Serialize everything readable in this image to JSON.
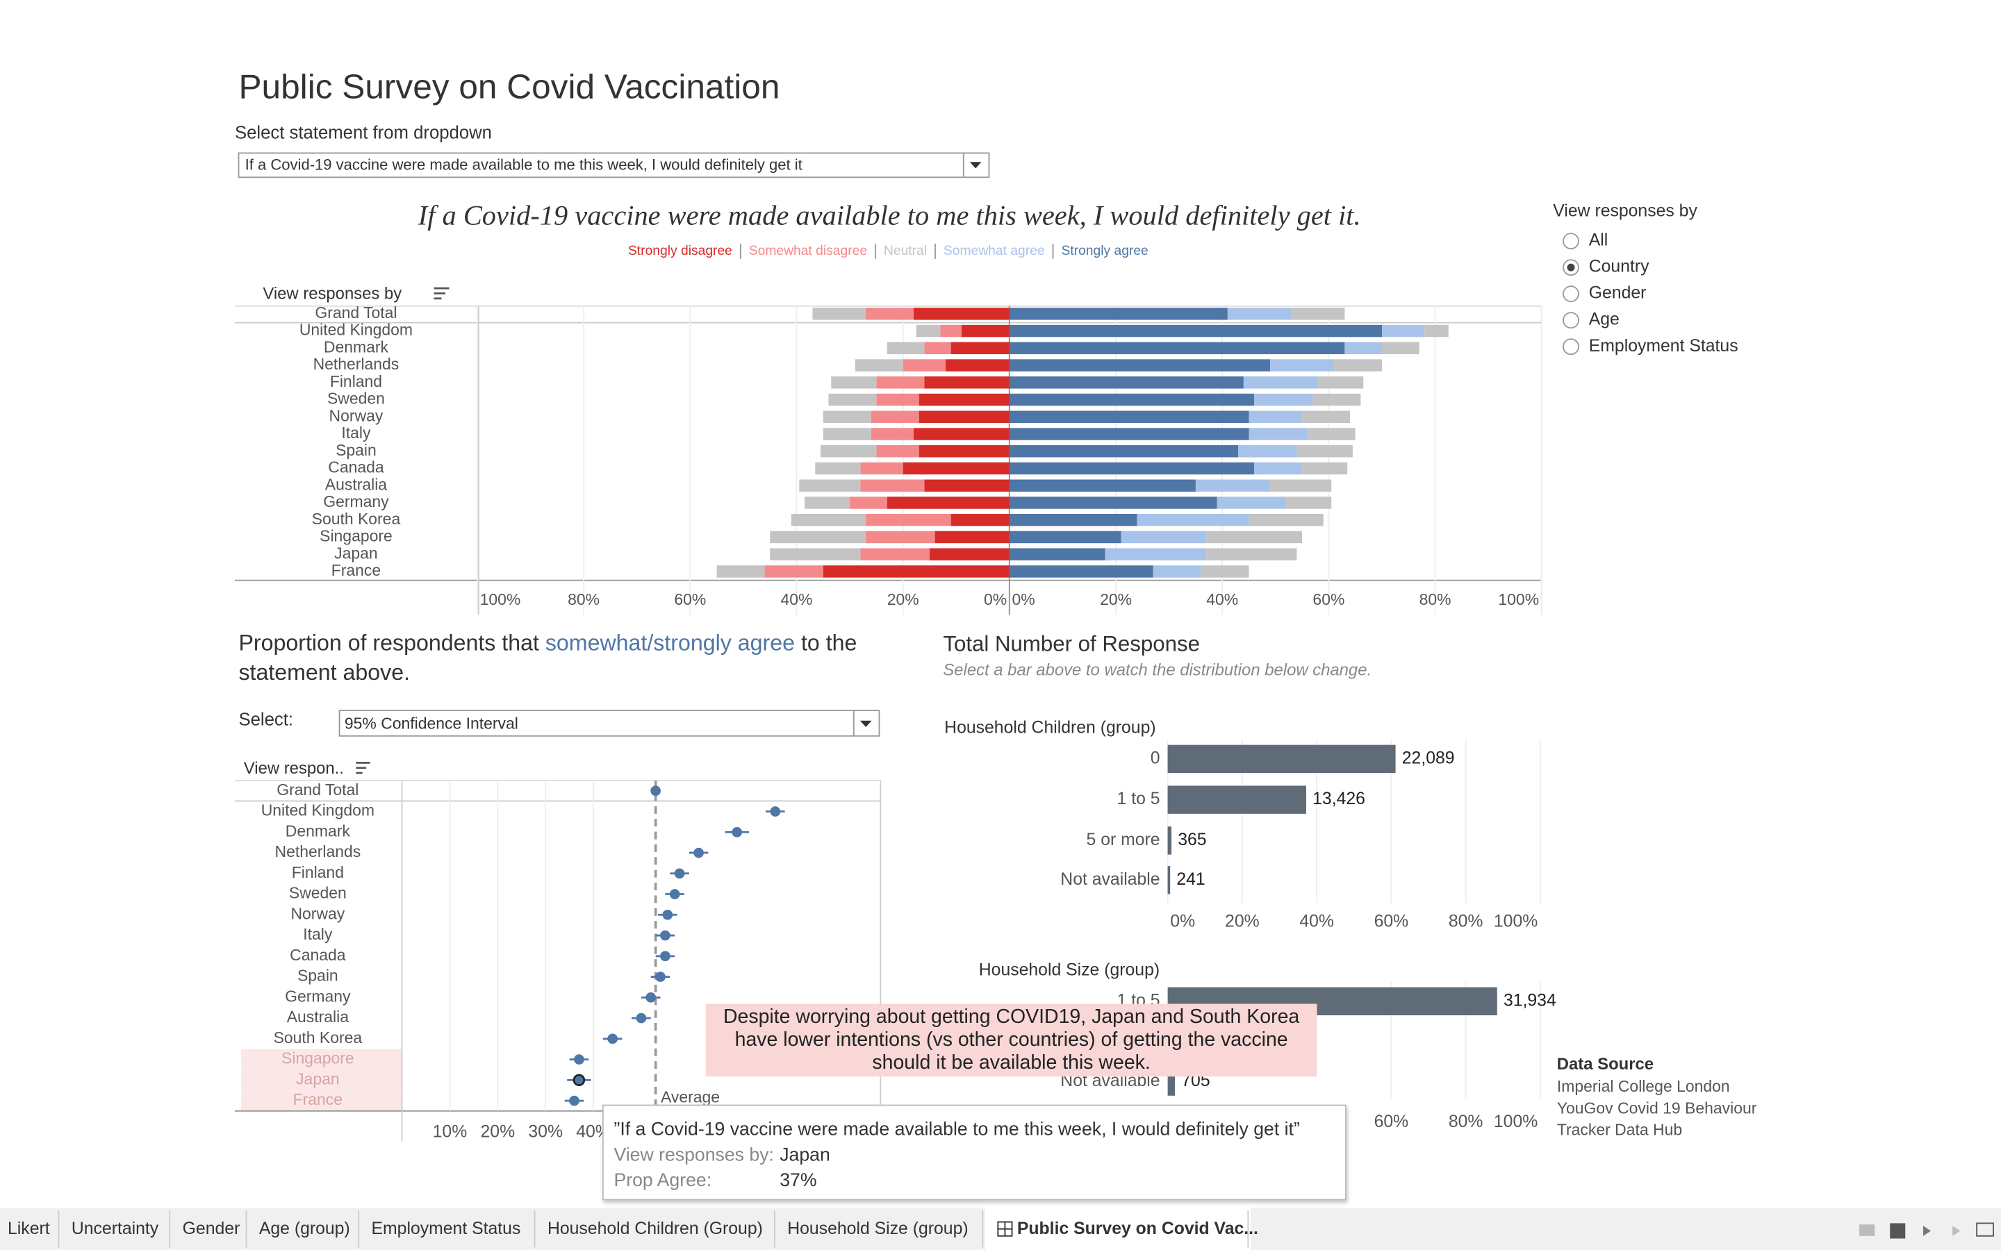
{
  "header": {
    "title": "Public Survey on Covid Vaccination",
    "dropdown_label": "Select statement from dropdown",
    "dropdown_value": "If a Covid-19 vaccine were made available to me this week, I would definitely get it"
  },
  "likert": {
    "title": "If a Covid-19 vaccine were made available to me this week, I would definitely get it.",
    "axis_header": "View responses by",
    "categories": [
      "Grand Total",
      "United Kingdom",
      "Denmark",
      "Netherlands",
      "Finland",
      "Sweden",
      "Norway",
      "Italy",
      "Spain",
      "Canada",
      "Australia",
      "Germany",
      "South Korea",
      "Singapore",
      "Japan",
      "France"
    ],
    "series": [
      {
        "name": "Strongly disagree",
        "color": "#d62b27",
        "values": [
          18,
          9,
          11,
          12,
          16,
          17,
          17,
          18,
          17,
          20,
          16,
          23,
          11,
          14,
          15,
          35
        ]
      },
      {
        "name": "Somewhat disagree",
        "color": "#f4898b",
        "values": [
          9,
          4,
          5,
          8,
          9,
          8,
          9,
          8,
          8,
          8,
          12,
          7,
          16,
          13,
          13,
          11
        ]
      },
      {
        "name": "Neutral",
        "color": "#c4c4c4",
        "values": [
          20,
          9,
          14,
          18,
          17,
          18,
          18,
          18,
          21,
          17,
          23,
          17,
          28,
          36,
          34,
          18
        ]
      },
      {
        "name": "Somewhat agree",
        "color": "#a8c3ea",
        "values": [
          12,
          8,
          7,
          12,
          14,
          11,
          10,
          11,
          11,
          9,
          14,
          13,
          21,
          16,
          19,
          9
        ]
      },
      {
        "name": "Strongly agree",
        "color": "#4e76a6",
        "values": [
          41,
          70,
          63,
          49,
          44,
          46,
          45,
          45,
          43,
          46,
          35,
          39,
          24,
          21,
          18,
          27
        ]
      }
    ],
    "xlim": [
      0,
      100
    ],
    "xticks": [
      {
        "value": 0,
        "label": "0%"
      },
      {
        "value": 20,
        "label": "20%"
      },
      {
        "value": 40,
        "label": "40%"
      },
      {
        "value": 60,
        "label": "60%"
      },
      {
        "value": 80,
        "label": "80%"
      },
      {
        "value": 100,
        "label": "100%"
      }
    ]
  },
  "view_panel": {
    "title": "View responses by",
    "options": [
      "All",
      "Country",
      "Gender",
      "Age",
      "Employment Status"
    ],
    "selected": "Country"
  },
  "uncertainty": {
    "title_before": "Proportion of respondents that",
    "title_highlight": "somewhat/strongly agree",
    "title_after": "to the statement above.",
    "select_label": "Select:",
    "select_value": "95% Confidence Interval",
    "axis_header": "View respon..",
    "categories": [
      "Grand Total",
      "United Kingdom",
      "Denmark",
      "Netherlands",
      "Finland",
      "Sweden",
      "Norway",
      "Italy",
      "Canada",
      "Spain",
      "Germany",
      "Australia",
      "South Korea",
      "Singapore",
      "Japan",
      "France"
    ],
    "values": [
      53,
      78,
      70,
      62,
      58,
      57,
      55.5,
      55,
      55,
      54,
      52,
      50,
      44,
      37,
      37,
      36
    ],
    "errors": [
      0.5,
      2,
      2.5,
      2,
      2,
      2,
      2,
      2,
      2,
      2,
      2,
      2,
      2,
      2,
      2.5,
      2
    ],
    "color": "#4e76a6",
    "highlighted_categories": [
      "Singapore",
      "Japan",
      "France"
    ],
    "selected_category": "Japan",
    "average": {
      "label": "Average",
      "value": 53
    },
    "xlim": [
      0,
      100
    ],
    "xticks": [
      {
        "value": 10,
        "label": "10%"
      },
      {
        "value": 20,
        "label": "20%"
      },
      {
        "value": 30,
        "label": "30%"
      },
      {
        "value": 40,
        "label": "40%"
      }
    ]
  },
  "totals": {
    "title": "Total Number of Response",
    "subtitle": "Select a bar above to watch the distribution below change.",
    "color": "#5f6b77",
    "charts": [
      {
        "title": "Household Children (group)",
        "categories": [
          "0",
          "1 to 5",
          "5 or more",
          "Not available"
        ],
        "values": [
          22089,
          13426,
          365,
          241
        ],
        "value_labels": [
          "22,089",
          "13,426",
          "365",
          "241"
        ],
        "xticks": [
          {
            "value": 0,
            "label": "0%"
          },
          {
            "value": 20,
            "label": "20%"
          },
          {
            "value": 40,
            "label": "40%"
          },
          {
            "value": 60,
            "label": "60%"
          },
          {
            "value": 80,
            "label": "80%"
          },
          {
            "value": 100,
            "label": "100%"
          }
        ]
      },
      {
        "title": "Household Size (group)",
        "categories": [
          "1 to 5",
          "Not available"
        ],
        "values": [
          31934,
          705
        ],
        "value_labels": [
          "31,934",
          "705"
        ],
        "xticks": [
          {
            "value": 60,
            "label": "60%"
          },
          {
            "value": 80,
            "label": "80%"
          },
          {
            "value": 100,
            "label": "100%"
          }
        ]
      }
    ]
  },
  "annotation": "Despite worrying about getting COVID19, Japan and South Korea have lower intentions (vs other countries) of getting the vaccine should it be available this week.",
  "tooltip": {
    "quote": "”If a Covid-19 vaccine were made available to me this week, I would definitely get it”",
    "rows": [
      {
        "label": "View responses by:",
        "value": "Japan"
      },
      {
        "label": "Prop Agree:",
        "value": "37%"
      }
    ]
  },
  "data_source": {
    "title": "Data Source",
    "lines": [
      "Imperial College London",
      "YouGov Covid 19 Behaviour Tracker Data Hub"
    ]
  },
  "tabs": {
    "items": [
      "Likert",
      "Uncertainty",
      "Gender",
      "Age (group)",
      "Employment Status",
      "Household Children (Group)",
      "Household Size (group)",
      "Public Survey on Covid Vac..."
    ],
    "active": 7
  }
}
